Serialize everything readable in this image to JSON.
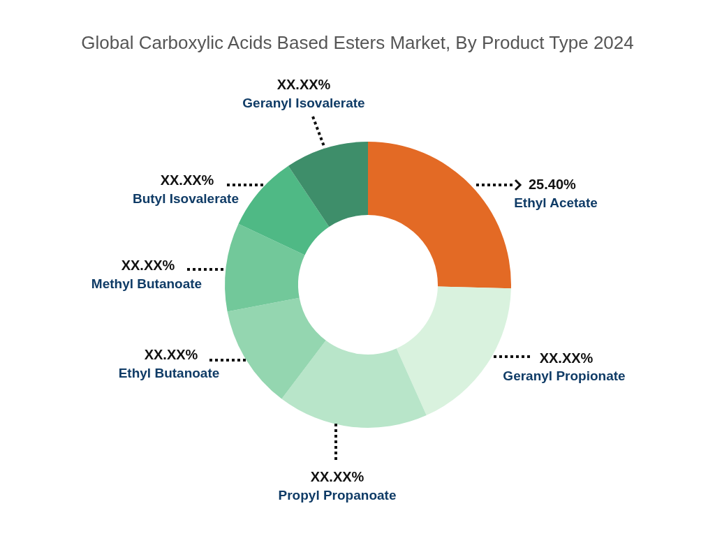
{
  "chart_data": {
    "type": "donut",
    "title": "Global Carboxylic Acids Based Esters Market, By Product Type 2024",
    "categories": [
      "Ethyl Acetate",
      "Geranyl Propionate",
      "Propyl Propanoate",
      "Ethyl Butanoate",
      "Methyl Butanoate",
      "Butyl Isovalerate",
      "Geranyl Isovalerate"
    ],
    "values": [
      25.4,
      17.9,
      17,
      11.7,
      10,
      8.6,
      9.4
    ],
    "colors": [
      "#e36a25",
      "#d9f2de",
      "#b8e5c9",
      "#94d6b0",
      "#72c89a",
      "#4fb985",
      "#3e8e6a"
    ],
    "value_labels": [
      "25.40%",
      "XX.XX%",
      "XX.XX%",
      "XX.XX%",
      "XX.XX%",
      "XX.XX%",
      "XX.XX%"
    ]
  }
}
